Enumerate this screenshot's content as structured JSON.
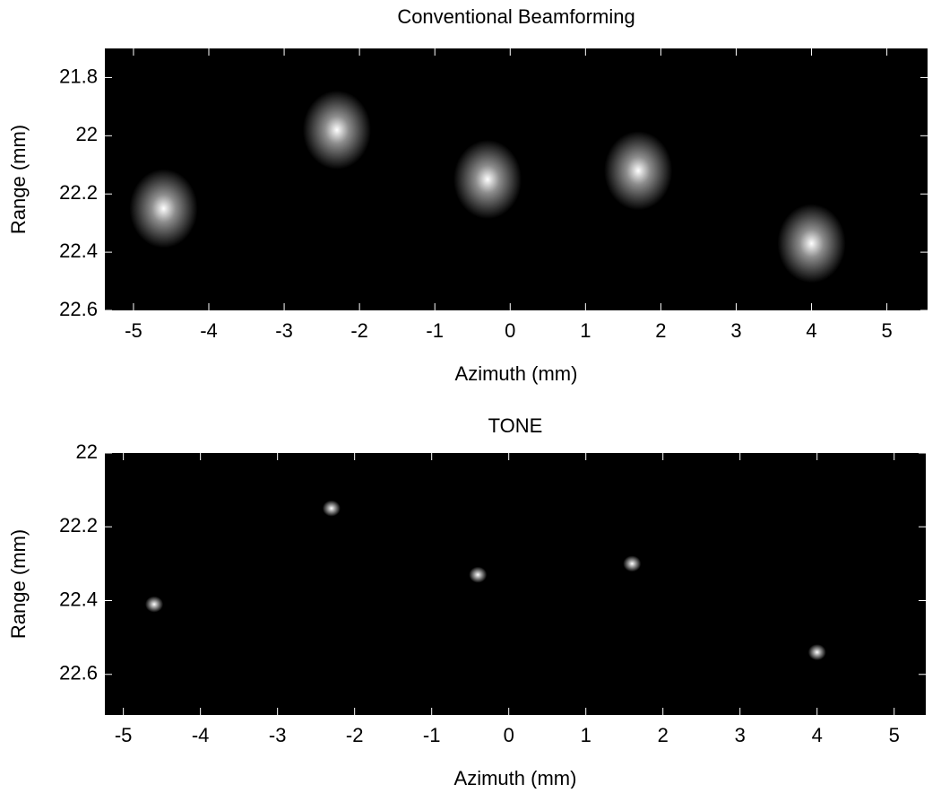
{
  "chart_data": [
    {
      "type": "scatter",
      "title": "Conventional Beamforming",
      "x_label": "Azimuth (mm)",
      "y_label": "Range (mm)",
      "x": [
        -4.6,
        -2.3,
        -0.3,
        1.7,
        4.0
      ],
      "y": [
        22.25,
        21.98,
        22.15,
        22.12,
        22.37
      ],
      "xlim": [
        -5.38,
        5.54
      ],
      "ylim": [
        21.7,
        22.6
      ],
      "y_reversed": true,
      "xticks": [
        -5,
        -4,
        -3,
        -2,
        -1,
        0,
        1,
        2,
        3,
        4,
        5
      ],
      "yticks": [
        21.8,
        22,
        22.2,
        22.4,
        22.6
      ],
      "background": "#000000",
      "color": "#ffffff"
    },
    {
      "type": "scatter",
      "title": "TONE",
      "x_label": "Azimuth (mm)",
      "y_label": "Range (mm)",
      "x": [
        -4.6,
        -2.3,
        -0.4,
        1.6,
        4.0
      ],
      "y": [
        22.41,
        22.15,
        22.33,
        22.3,
        22.54
      ],
      "xlim": [
        -5.24,
        5.41
      ],
      "ylim": [
        22,
        22.71
      ],
      "y_reversed": true,
      "xticks": [
        -5,
        -4,
        -3,
        -2,
        -1,
        0,
        1,
        2,
        3,
        4,
        5
      ],
      "yticks": [
        22,
        22.2,
        22.4,
        22.6
      ],
      "background": "#000000",
      "color": "#ffffff"
    }
  ]
}
